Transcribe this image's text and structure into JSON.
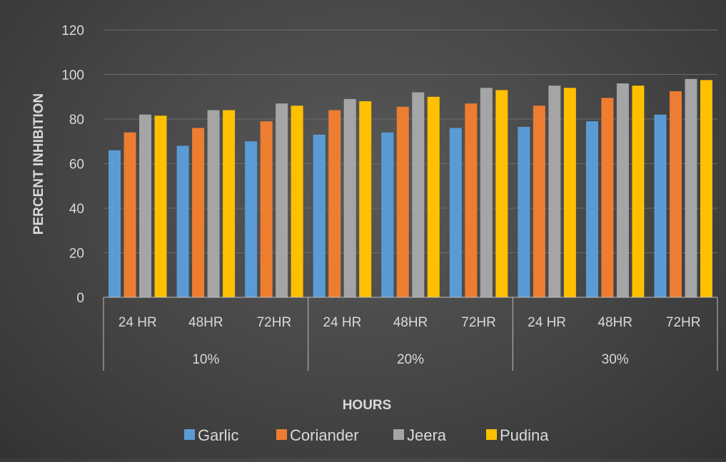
{
  "chart_data": {
    "type": "bar",
    "title": "",
    "xlabel": "HOURS",
    "ylabel": "PERCENT INHIBITION",
    "ylim": [
      0,
      120
    ],
    "yticks": [
      "0",
      "20",
      "40",
      "60",
      "80",
      "100",
      "120"
    ],
    "grid": true,
    "legend_position": "bottom",
    "groups": [
      {
        "label": "10%",
        "categories": [
          "24 HR",
          "48HR",
          "72HR"
        ]
      },
      {
        "label": "20%",
        "categories": [
          "24 HR",
          "48HR",
          "72HR"
        ]
      },
      {
        "label": "30%",
        "categories": [
          "24 HR",
          "48HR",
          "72HR"
        ]
      }
    ],
    "series": [
      {
        "name": "Garlic",
        "color": "#5B9BD5",
        "values": [
          66,
          68,
          70,
          73,
          74,
          76,
          76.5,
          79,
          82
        ]
      },
      {
        "name": "Coriander",
        "color": "#ED7D31",
        "values": [
          74,
          76,
          79,
          84,
          85.5,
          87,
          86,
          89.5,
          92.5
        ]
      },
      {
        "name": "Jeera",
        "color": "#A5A5A5",
        "values": [
          82,
          84,
          87,
          89,
          92,
          94,
          95,
          96,
          98
        ]
      },
      {
        "name": "Pudina",
        "color": "#FFC000",
        "values": [
          81.5,
          84,
          86,
          88,
          90,
          93,
          94,
          95,
          97.5
        ]
      }
    ]
  }
}
